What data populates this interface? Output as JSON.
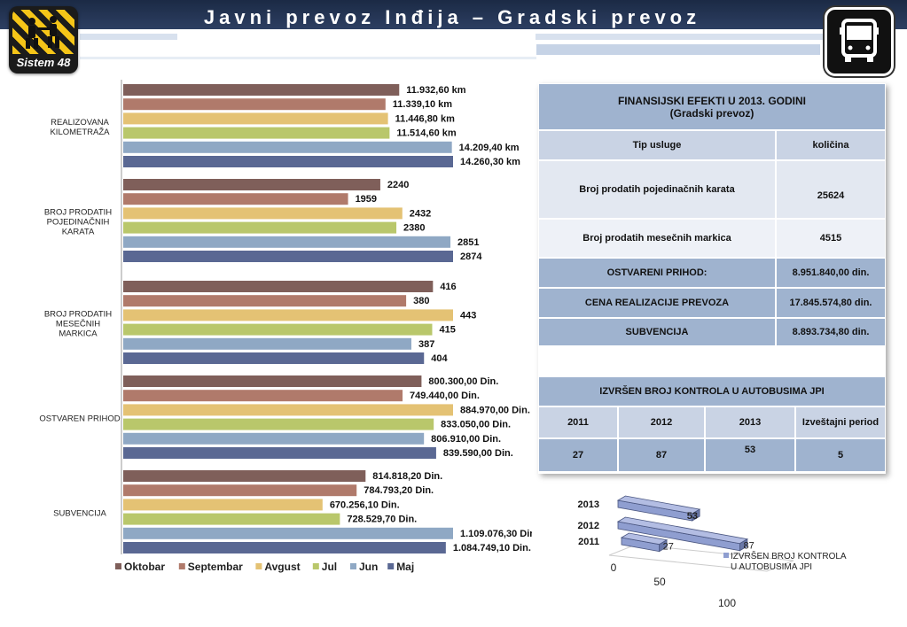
{
  "page": {
    "title": "Javni prevoz Inđija – Gradski prevoz",
    "logo_label": "Sistem 48"
  },
  "colors": {
    "header_band": "#1b2a45",
    "table_dark": "#9fb3cf",
    "table_light": "#e3e8f1",
    "series": [
      "#7f5f5a",
      "#b07a6b",
      "#e4c274",
      "#b9c76b",
      "#8fa8c4",
      "#5a6893"
    ]
  },
  "icons": {
    "logo": "sistem48-logo-icon",
    "transport": "bus-icon"
  },
  "finance_table": {
    "title_line1": "FINANSIJSKI EFEKTI  U 2013. GODINI",
    "title_line2": "(Gradski prevoz)",
    "col1": "Tip usluge",
    "col2": "količina",
    "rows": [
      {
        "label": "Broj prodatih pojedinačnih karata",
        "value": "25624"
      },
      {
        "label": "Broj prodatih mesečnih markica",
        "value": "4515"
      },
      {
        "label": "OSTVARENI PRIHOD:",
        "value": "8.951.840,00 din."
      },
      {
        "label": "CENA REALIZACIJE PREVOZA",
        "value": "17.845.574,80 din."
      },
      {
        "label": "SUBVENCIJA",
        "value": "8.893.734,80 din."
      }
    ]
  },
  "controls_table": {
    "title": "IZVRŠEN BROJ KONTROLA U AUTOBUSIMA JPI",
    "headers": [
      "2011",
      "2012",
      "2013",
      "Izveštajni period"
    ],
    "values": [
      "27",
      "87",
      "53",
      "5"
    ]
  },
  "chart_data": [
    {
      "type": "bar",
      "orientation": "horizontal",
      "groups": [
        {
          "label": "REALIZOVANA KILOMETRAŽA",
          "values": [
            11932.6,
            11339.1,
            11446.8,
            11514.6,
            14209.4,
            14260.3
          ],
          "labels": [
            "11.932,60 km",
            "11.339,10 km",
            "11.446,80 km",
            "11.514,60 km",
            "14.209,40 km",
            "14.260,30 km"
          ]
        },
        {
          "label": "BROJ PRODATIH POJEDINAČNIH KARATA",
          "values": [
            2240,
            1959,
            2432,
            2380,
            2851,
            2874
          ],
          "labels": [
            "2240",
            "1959",
            "2432",
            "2380",
            "2851",
            "2874"
          ]
        },
        {
          "label": "BROJ PRODATIH MESEČNIH MARKICA",
          "values": [
            416,
            380,
            443,
            415,
            387,
            404
          ],
          "labels": [
            "416",
            "380",
            "443",
            "415",
            "387",
            "404"
          ]
        },
        {
          "label": "OSTVAREN PRIHOD",
          "values": [
            800300,
            749440,
            884970,
            833050,
            806910,
            839590
          ],
          "labels": [
            "800.300,00 Din.",
            "749.440,00 Din.",
            "884.970,00 Din.",
            "833.050,00 Din.",
            "806.910,00 Din.",
            "839.590,00 Din."
          ]
        },
        {
          "label": "SUBVENCIJA",
          "values": [
            814818.2,
            784793.2,
            670256.1,
            728529.7,
            1109076.3,
            1084749.1
          ],
          "labels": [
            "814.818,20 Din.",
            "784.793,20 Din.",
            "670.256,10 Din.",
            "728.529,70 Din.",
            "1.109.076,30 Din.",
            "1.084.749,10 Din."
          ]
        }
      ],
      "series": [
        {
          "name": "Oktobar",
          "color": "#7f5f5a"
        },
        {
          "name": "Septembar",
          "color": "#b07a6b"
        },
        {
          "name": "Avgust",
          "color": "#e4c274"
        },
        {
          "name": "Jul",
          "color": "#b9c76b"
        },
        {
          "name": "Jun",
          "color": "#8fa8c4"
        },
        {
          "name": "Maj",
          "color": "#5a6893"
        }
      ],
      "legend": "bottom",
      "grid": false
    },
    {
      "type": "bar",
      "orientation": "horizontal",
      "style": "3d",
      "categories": [
        "2011",
        "2012",
        "2013"
      ],
      "values": [
        27,
        87,
        53
      ],
      "series_name": "IZVRŠEN BROJ KONTROLA U AUTOBUSIMA JPI",
      "axis_ticks": [
        "0",
        "50",
        "100"
      ],
      "xlim": [
        0,
        100
      ],
      "legend": "right",
      "color": "#8f9ed0"
    }
  ]
}
